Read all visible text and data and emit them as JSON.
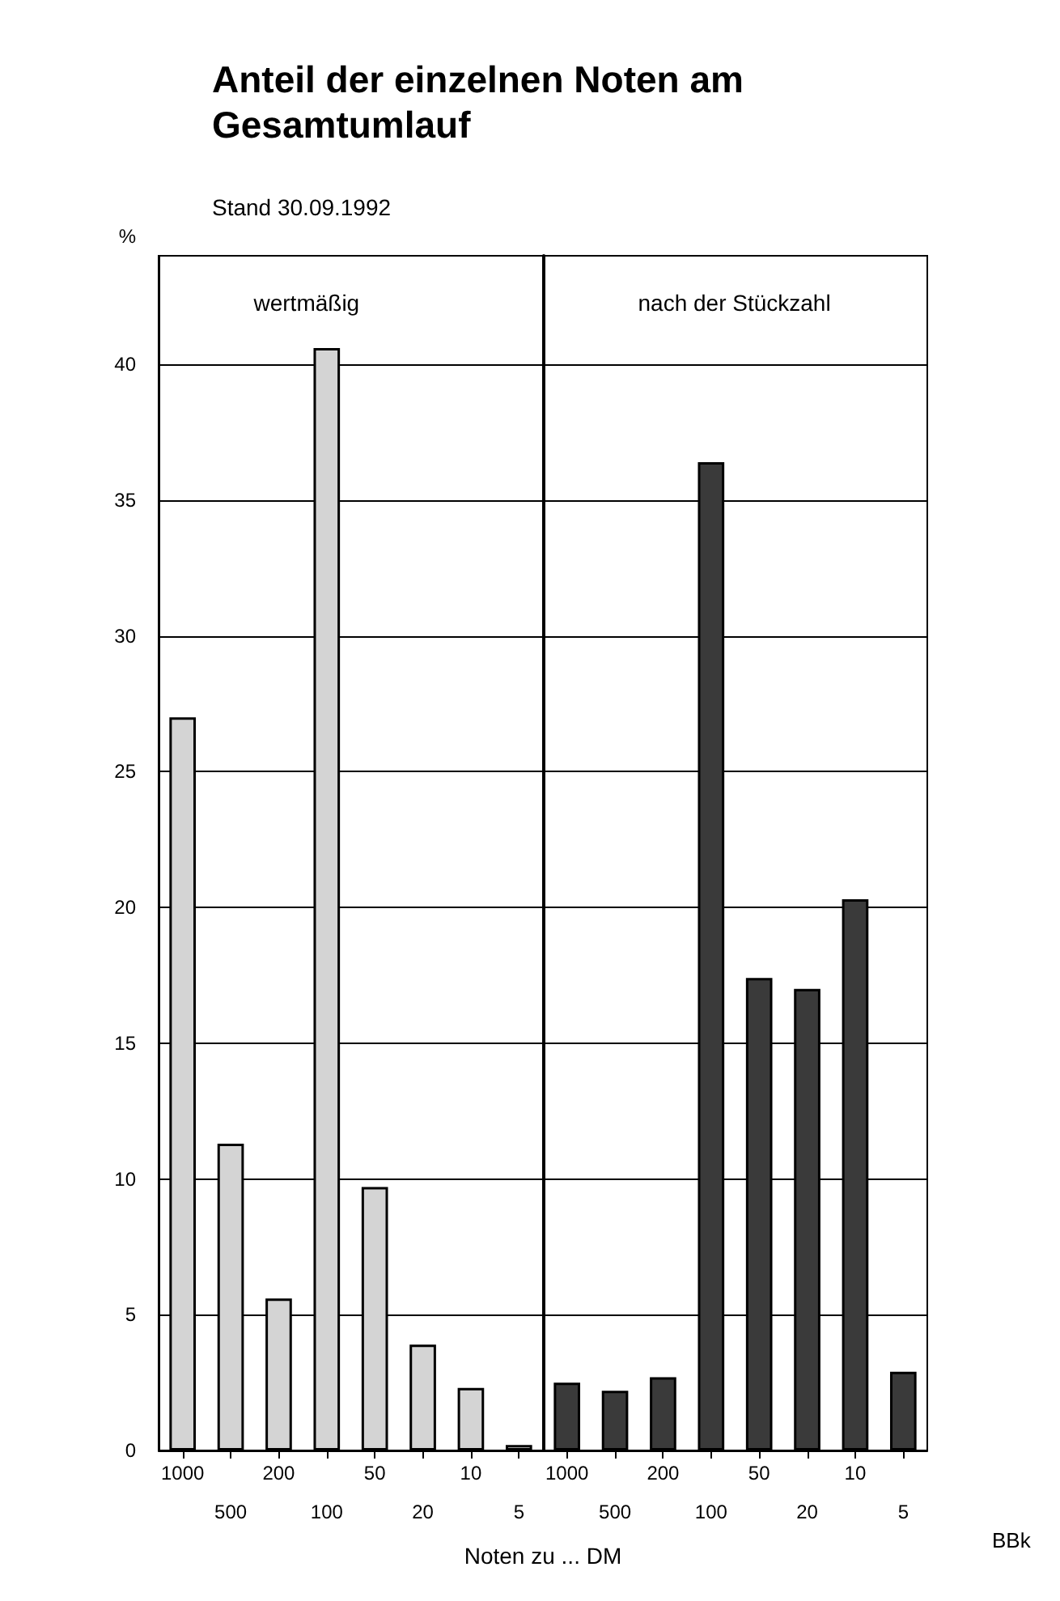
{
  "chart_data": [
    {
      "type": "bar",
      "title": "Anteil der einzelnen Noten am Gesamtumlauf",
      "subtitle": "Stand 30.09.1992",
      "ylabel": "%",
      "xlabel": "Noten zu ... DM",
      "categories": [
        "1000",
        "500",
        "200",
        "100",
        "50",
        "20",
        "10",
        "5"
      ],
      "series": [
        {
          "name": "wertmäßig",
          "color": "#d4d4d4",
          "values": [
            27.0,
            11.3,
            5.6,
            40.6,
            9.7,
            3.9,
            2.3,
            0.2
          ]
        }
      ],
      "ylim": [
        0,
        44
      ],
      "yticks": [
        0,
        5,
        10,
        15,
        20,
        25,
        30,
        35,
        40
      ],
      "grid": "y",
      "legend": false
    },
    {
      "type": "bar",
      "annotations": [
        "BBk"
      ],
      "categories": [
        "1000",
        "500",
        "200",
        "100",
        "50",
        "20",
        "10",
        "5"
      ],
      "series": [
        {
          "name": "nach der Stückzahl",
          "color": "#3a3a3a",
          "values": [
            2.5,
            2.2,
            2.7,
            36.4,
            17.4,
            17.0,
            20.3,
            2.9
          ]
        }
      ],
      "ylim": [
        0,
        44
      ],
      "yticks": [
        0,
        5,
        10,
        15,
        20,
        25,
        30,
        35,
        40
      ],
      "grid": "y",
      "legend": false,
      "tick_labels": "x"
    }
  ]
}
